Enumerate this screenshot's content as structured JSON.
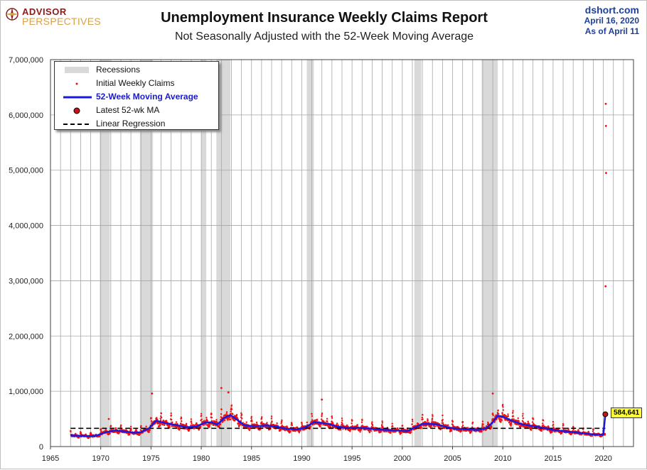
{
  "brand": {
    "line1": "ADVISOR",
    "line2": "PERSPECTIVES",
    "mark_icon": "compass-rose-icon"
  },
  "title": "Unemployment Insurance Weekly Claims Report",
  "subtitle": "Not Seasonally Adjusted with the 52-Week Moving Average",
  "source": {
    "site": "dshort.com",
    "date": "April 16, 2020",
    "asof": "As of April 11"
  },
  "legend": {
    "recessions": "Recessions",
    "initial": "Initial Weekly Claims",
    "ma": "52-Week Moving Average",
    "latest": "Latest 52-wk MA",
    "regression": "Linear Regression"
  },
  "colors": {
    "claims": "#ee1111",
    "ma": "#1a1add",
    "recession": "#d9d9d9",
    "regression": "#000000",
    "callout": "#ffff33"
  },
  "chart_data": {
    "type": "line",
    "title": "Unemployment Insurance Weekly Claims Report",
    "xlim": [
      1965,
      2023
    ],
    "ylim": [
      0,
      7000000
    ],
    "xticks": [
      1965,
      1970,
      1975,
      1980,
      1985,
      1990,
      1995,
      2000,
      2005,
      2010,
      2015,
      2020
    ],
    "yticks": [
      0,
      1000000,
      2000000,
      3000000,
      4000000,
      5000000,
      6000000,
      7000000
    ],
    "ytick_labels": [
      "0",
      "1,000,000",
      "2,000,000",
      "3,000,000",
      "4,000,000",
      "5,000,000",
      "6,000,000",
      "7,000,000"
    ],
    "grid": true,
    "legend_position": "top-left",
    "recessions": [
      [
        1969.9,
        1970.9
      ],
      [
        1973.9,
        1975.2
      ],
      [
        1980.0,
        1980.5
      ],
      [
        1981.5,
        1982.9
      ],
      [
        1990.5,
        1991.2
      ],
      [
        2001.2,
        2001.9
      ],
      [
        2007.9,
        2009.5
      ]
    ],
    "moving_average": {
      "name": "52-Week Moving Average",
      "x": [
        1967.0,
        1968.0,
        1969.0,
        1969.6,
        1970.5,
        1971.5,
        1972.5,
        1973.3,
        1974.0,
        1974.8,
        1975.5,
        1976.5,
        1977.5,
        1978.5,
        1979.5,
        1980.3,
        1981.0,
        1981.6,
        1982.3,
        1982.9,
        1983.6,
        1984.3,
        1985.5,
        1986.5,
        1987.5,
        1988.5,
        1989.5,
        1990.3,
        1991.2,
        1991.9,
        1992.7,
        1993.5,
        1994.5,
        1995.5,
        1996.5,
        1997.5,
        1998.5,
        1999.5,
        2000.5,
        2001.3,
        2002.0,
        2002.8,
        2003.5,
        2004.5,
        2005.5,
        2006.5,
        2007.5,
        2008.3,
        2008.9,
        2009.5,
        2010.0,
        2011.0,
        2012.0,
        2013.0,
        2014.0,
        2015.0,
        2016.0,
        2017.0,
        2018.0,
        2019.0,
        2020.0,
        2020.2
      ],
      "y": [
        200000,
        195000,
        190000,
        200000,
        260000,
        290000,
        270000,
        250000,
        260000,
        330000,
        470000,
        420000,
        390000,
        350000,
        360000,
        430000,
        440000,
        400000,
        520000,
        570000,
        480000,
        380000,
        370000,
        380000,
        360000,
        320000,
        310000,
        340000,
        440000,
        430000,
        410000,
        360000,
        340000,
        340000,
        330000,
        310000,
        300000,
        290000,
        280000,
        350000,
        410000,
        410000,
        400000,
        350000,
        320000,
        310000,
        300000,
        330000,
        420000,
        560000,
        540000,
        460000,
        400000,
        370000,
        340000,
        300000,
        280000,
        260000,
        240000,
        220000,
        215000,
        584641
      ]
    },
    "regression": {
      "name": "Linear Regression",
      "x": [
        1967,
        2020.2
      ],
      "y": [
        330000,
        330000
      ]
    },
    "latest": {
      "label": "Latest 52-wk MA",
      "x": 2020.2,
      "y": 584641,
      "display": "584,641"
    },
    "claims_outliers": {
      "x": [
        2020.22,
        2020.24,
        2020.26,
        2020.28,
        1975.1,
        1982.0,
        1982.7,
        2009.0,
        1992.0,
        1970.8
      ],
      "y": [
        2900000,
        6200000,
        5800000,
        4950000,
        960000,
        1060000,
        980000,
        960000,
        850000,
        500000
      ]
    }
  }
}
